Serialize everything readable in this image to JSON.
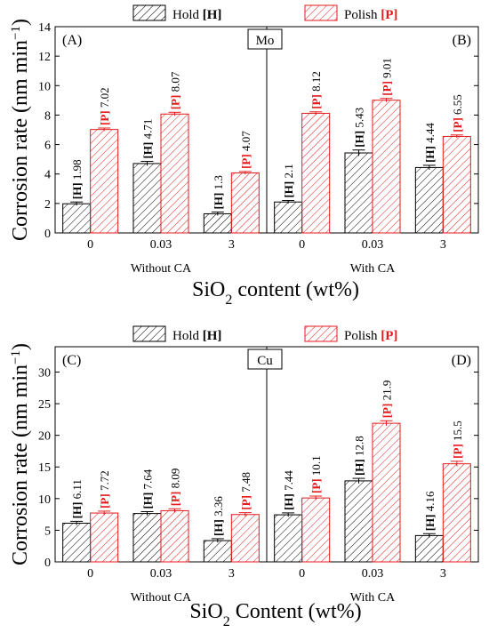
{
  "hatch_colors": {
    "hold": "#000000",
    "polish": "#e41a1c"
  },
  "chart_data": [
    {
      "type": "bar",
      "metal": "Mo",
      "ylabel_main": "Corrosion rate (nm min",
      "ylabel_sup": "−1",
      "ylabel_close": ")",
      "xlabel_main": "SiO",
      "xlabel_sub": "2",
      "xlabel_rest": " content (wt%)",
      "ylim": [
        0,
        14
      ],
      "yticks": [
        0,
        2,
        4,
        6,
        8,
        10,
        12,
        14
      ],
      "groups": [
        {
          "label": "Without CA",
          "panel": "(A)",
          "categories": [
            "0",
            "0.03",
            "3"
          ],
          "hold": [
            1.98,
            4.71,
            1.3
          ],
          "polish": [
            7.02,
            8.07,
            4.07
          ]
        },
        {
          "label": "With CA",
          "panel": "(B)",
          "categories": [
            "0",
            "0.03",
            "3"
          ],
          "hold": [
            2.1,
            5.43,
            4.44
          ],
          "polish": [
            8.12,
            9.01,
            6.55
          ]
        }
      ],
      "legend": {
        "hold_text": "Hold ",
        "hold_tag": "[H]",
        "polish_text": "Polish ",
        "polish_tag": "[P]",
        "placement": "top"
      },
      "errors_hold": [
        0.12,
        0.15,
        0.12,
        0.1,
        0.2,
        0.15
      ],
      "errors_polish": [
        0.1,
        0.12,
        0.1,
        0.1,
        0.12,
        0.1
      ]
    },
    {
      "type": "bar",
      "metal": "Cu",
      "ylabel_main": "Corrosion rate (nm min",
      "ylabel_sup": "−1",
      "ylabel_close": ")",
      "xlabel_main": "SiO",
      "xlabel_sub": "2",
      "xlabel_rest": " Content (wt%)",
      "ylim": [
        0,
        34
      ],
      "yticks": [
        0,
        5,
        10,
        15,
        20,
        25,
        30
      ],
      "groups": [
        {
          "label": "Without CA",
          "panel": "(C)",
          "categories": [
            "0",
            "0.03",
            "3"
          ],
          "hold": [
            6.11,
            7.64,
            3.36
          ],
          "polish": [
            7.72,
            8.09,
            7.48
          ]
        },
        {
          "label": "With CA",
          "panel": "(D)",
          "categories": [
            "0",
            "0.03",
            "3"
          ],
          "hold": [
            7.44,
            12.8,
            4.16
          ],
          "polish": [
            10.1,
            21.9,
            15.5
          ]
        }
      ],
      "legend": {
        "hold_text": "Hold ",
        "hold_tag": "[H]",
        "polish_text": "Polish ",
        "polish_tag": "[P]",
        "placement": "top"
      },
      "errors_hold": [
        0.3,
        0.3,
        0.3,
        0.3,
        0.4,
        0.3
      ],
      "errors_polish": [
        0.3,
        0.3,
        0.3,
        0.3,
        0.4,
        0.4
      ]
    }
  ]
}
